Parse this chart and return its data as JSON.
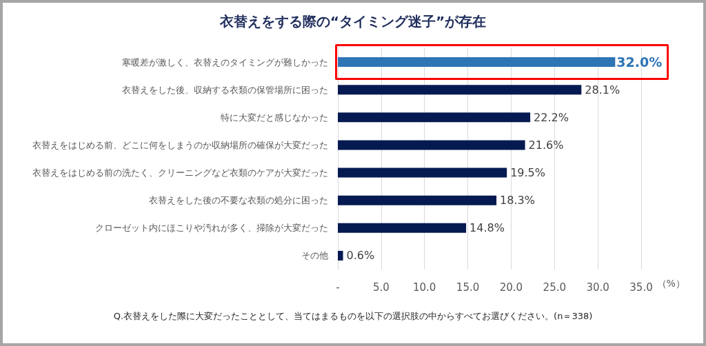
{
  "chart_data": {
    "type": "bar",
    "orientation": "horizontal",
    "title": "衣替えをする際の“タイミング迷子”が存在",
    "xlabel": "（%）",
    "annotations": [
      "Q.衣替えをした際に大変だったこととして、当てはまるものを以下の選択肢の中からすべてお選びください。(n＝338)"
    ],
    "categories": [
      "寒暖差が激しく、衣替えのタイミングが難しかった",
      "衣替えをした後、収納する衣類の保管場所に困った",
      "特に大変だと感じなかった",
      "衣替えをはじめる前、どこに何をしまうのか収納場所の確保が大変だった",
      "衣替えをはじめる前の洗たく、クリーニングなど衣類のケアが大変だった",
      "衣替えをした後の不要な衣類の処分に困った",
      "クローゼット内にほこりや汚れが多く、掃除が大変だった",
      "その他"
    ],
    "values": [
      32.0,
      28.1,
      22.2,
      21.6,
      19.5,
      18.3,
      14.8,
      0.6
    ],
    "colors": [
      "#2e75b6",
      "#061a52",
      "#061a52",
      "#061a52",
      "#061a52",
      "#061a52",
      "#061a52",
      "#061a52"
    ],
    "value_labels": [
      "32.0%",
      "28.1%",
      "22.2%",
      "21.6%",
      "19.5%",
      "18.3%",
      "14.8%",
      "0.6%"
    ],
    "xlim": [
      0,
      35
    ],
    "xticks": [
      {
        "value": 0,
        "label": "-"
      },
      {
        "value": 5,
        "label": "5.0"
      },
      {
        "value": 10,
        "label": "10.0"
      },
      {
        "value": 15,
        "label": "15.0"
      },
      {
        "value": 20,
        "label": "20.0"
      },
      {
        "value": 25,
        "label": "25.0"
      },
      {
        "value": 30,
        "label": "30.0"
      },
      {
        "value": 35,
        "label": "35.0"
      }
    ],
    "grid": "x"
  }
}
